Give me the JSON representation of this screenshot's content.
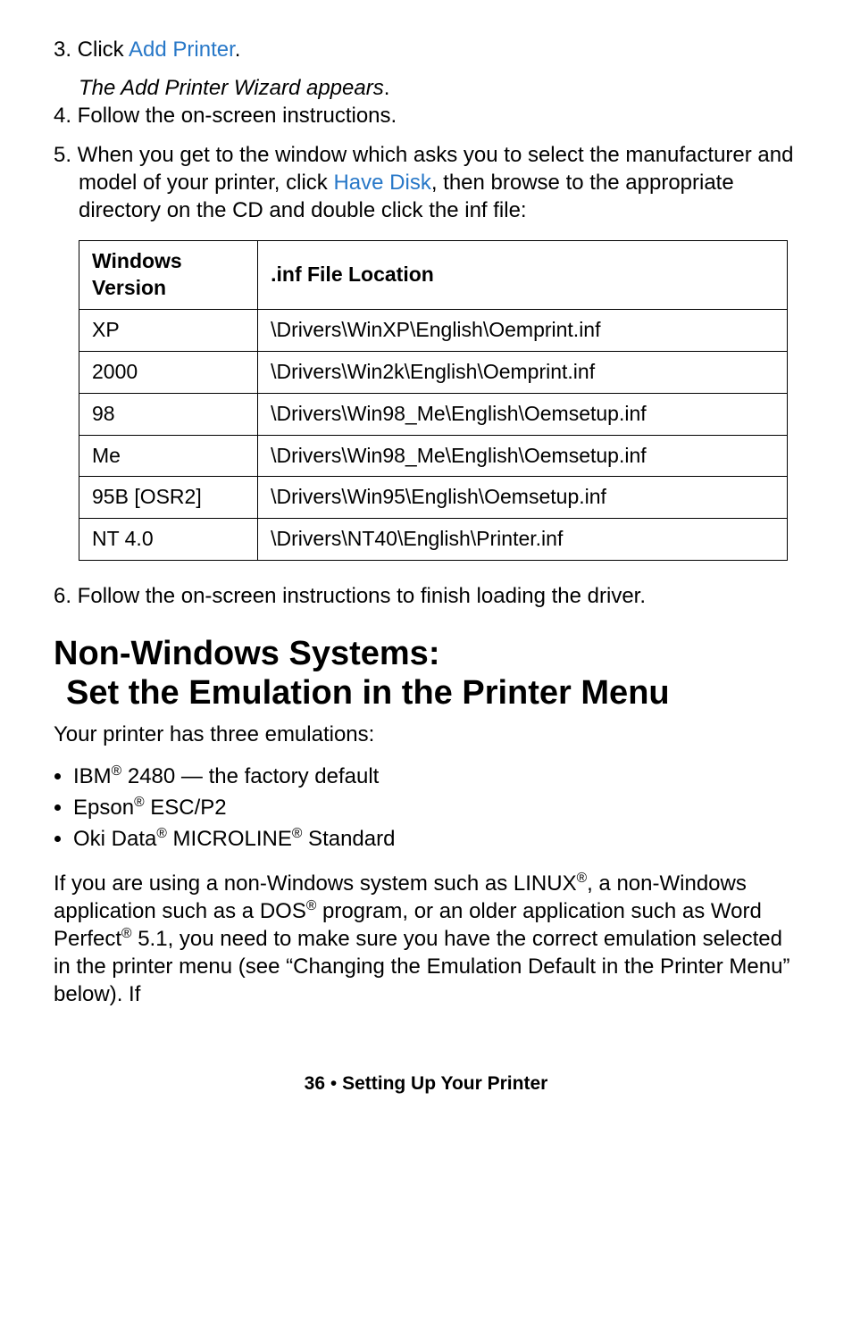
{
  "steps": {
    "s3a": "3. Click ",
    "s3_link": "Add Printer",
    "s3b": ".",
    "s3_sub": "The Add Printer Wizard appears",
    "s3_sub_end": ".",
    "s4": "4. Follow the on-screen instructions.",
    "s5a": "5. When you get to the window which asks you to select the manufacturer and model of your printer, click ",
    "s5_link": "Have Disk",
    "s5b": ", then browse to the appropriate directory on the CD and double click the inf file:",
    "s6": "6. Follow the on-screen instructions to finish loading the driver."
  },
  "table": {
    "h1a": "Windows",
    "h1b": "Version",
    "h2": ".inf File Location",
    "rows": {
      "r0c0": "XP",
      "r0c1": "\\Drivers\\WinXP\\English\\Oemprint.inf",
      "r1c0": "2000",
      "r1c1": "\\Drivers\\Win2k\\English\\Oemprint.inf",
      "r2c0": "98",
      "r2c1": "\\Drivers\\Win98_Me\\English\\Oemsetup.inf",
      "r3c0": "Me",
      "r3c1": "\\Drivers\\Win98_Me\\English\\Oemsetup.inf",
      "r4c0": "95B [OSR2]",
      "r4c1": "\\Drivers\\Win95\\English\\Oemsetup.inf",
      "r5c0": "NT 4.0",
      "r5c1": "\\Drivers\\NT40\\English\\Printer.inf"
    }
  },
  "heading": {
    "line1": "Non-Windows Systems:",
    "line2": "Set the Emulation in the Printer Menu"
  },
  "intro": "Your printer has three emulations:",
  "bullets": {
    "b1a": "IBM",
    "b1b": " 2480 — the factory default",
    "b2a": "Epson",
    "b2b": " ESC/P2",
    "b3a": "Oki Data",
    "b3b": " MICROLINE",
    "b3c": " Standard"
  },
  "reg": "®",
  "body": {
    "p1a": "If you are using a non-Windows system such as LINUX",
    "p1b": ", a non-Windows application such as a DOS",
    "p1c": " program, or an older application such as Word Perfect",
    "p1d": " 5.1, you need to make sure you have the correct emulation selected in the printer menu (see “Changing the Emulation Default in the Printer Menu” below). If"
  },
  "footer": {
    "page": "36",
    "bullet": "  •  ",
    "title": "Setting Up Your Printer"
  }
}
